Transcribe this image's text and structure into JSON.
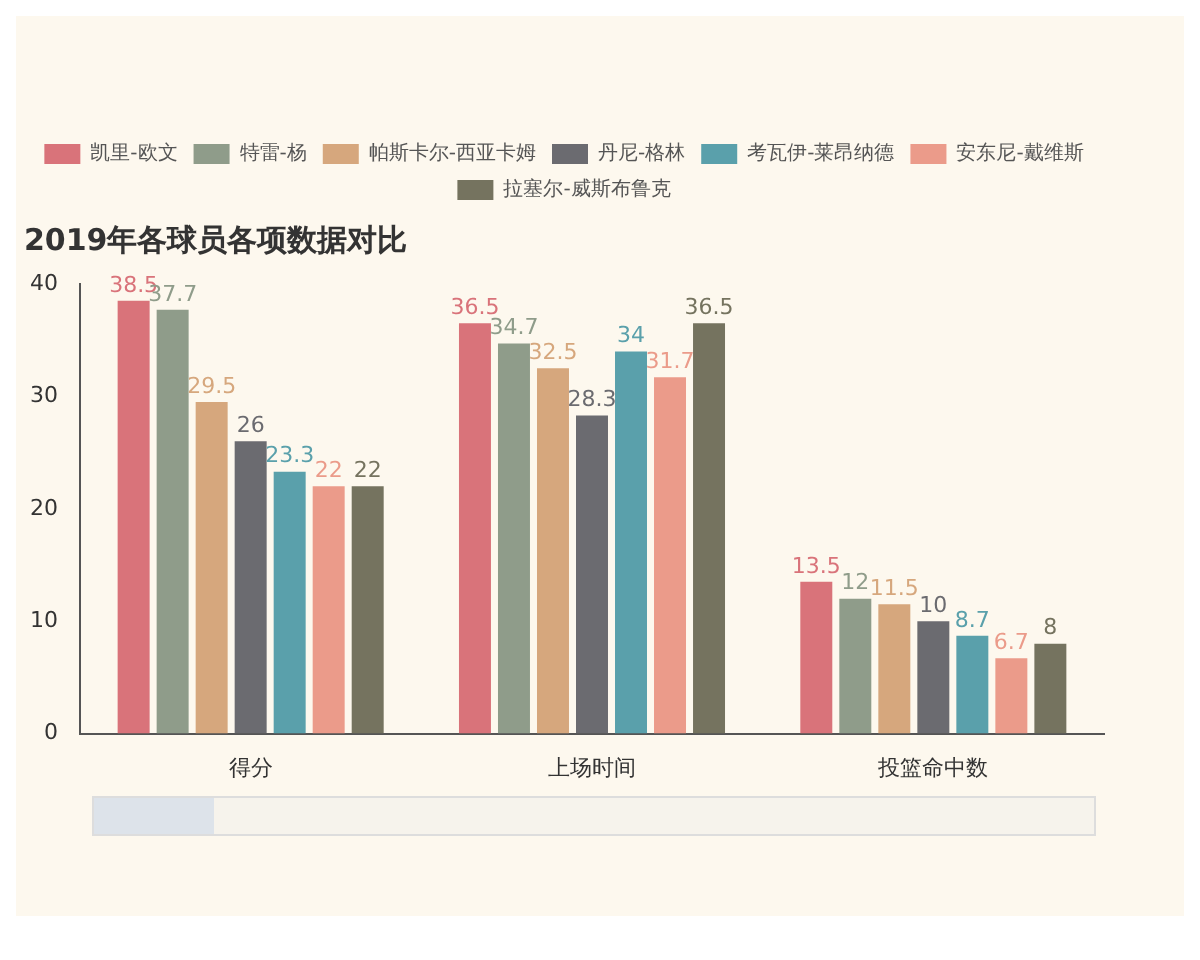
{
  "chart_data": {
    "type": "bar",
    "title": "2019年各球员各项数据对比",
    "categories": [
      "得分",
      "上场时间",
      "投篮命中数"
    ],
    "series": [
      {
        "name": "凯里-欧文",
        "color": "#d9737a",
        "values": [
          38.5,
          36.5,
          13.5
        ]
      },
      {
        "name": "特雷-杨",
        "color": "#8f9c8a",
        "values": [
          37.7,
          34.7,
          12
        ]
      },
      {
        "name": "帕斯卡尔-西亚卡姆",
        "color": "#d6a77d",
        "values": [
          29.5,
          32.5,
          11.5
        ]
      },
      {
        "name": "丹尼-格林",
        "color": "#6b6b70",
        "values": [
          26,
          28.3,
          10
        ]
      },
      {
        "name": "考瓦伊-莱昂纳德",
        "color": "#5aa0ab",
        "values": [
          23.3,
          34,
          8.7
        ]
      },
      {
        "name": "安东尼-戴维斯",
        "color": "#eb9b8a",
        "values": [
          22,
          31.7,
          6.7
        ]
      },
      {
        "name": "拉塞尔-威斯布鲁克",
        "color": "#75735f",
        "values": [
          22,
          36.5,
          8
        ]
      }
    ],
    "ylim": [
      0,
      40
    ],
    "yticks": [
      0,
      10,
      20,
      30,
      40
    ],
    "grid": false,
    "legend": "top",
    "data_labels": true
  }
}
